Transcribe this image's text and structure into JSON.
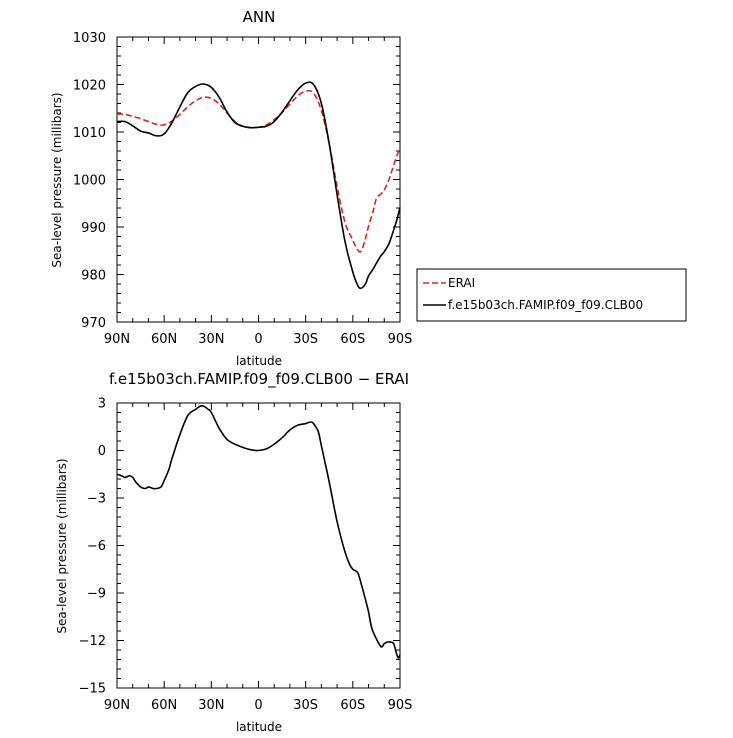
{
  "chart_data": [
    {
      "type": "line",
      "title": "ANN",
      "xlabel": "latitude",
      "ylabel": "Sea-level pressure (millibars)",
      "xlim": [
        90,
        -90
      ],
      "ylim": [
        970,
        1030
      ],
      "x_ticks": [
        {
          "value": 90,
          "label": "90N"
        },
        {
          "value": 60,
          "label": "60N"
        },
        {
          "value": 30,
          "label": "30N"
        },
        {
          "value": 0,
          "label": "0"
        },
        {
          "value": -30,
          "label": "30S"
        },
        {
          "value": -60,
          "label": "60S"
        },
        {
          "value": -90,
          "label": "90S"
        }
      ],
      "y_ticks": [
        {
          "value": 970,
          "label": "970"
        },
        {
          "value": 980,
          "label": "980"
        },
        {
          "value": 990,
          "label": "990"
        },
        {
          "value": 1000,
          "label": "1000"
        },
        {
          "value": 1010,
          "label": "1010"
        },
        {
          "value": 1020,
          "label": "1020"
        },
        {
          "value": 1030,
          "label": "1030"
        }
      ],
      "legend_position": "right",
      "series": [
        {
          "name": "ERAI",
          "color": "#e02020",
          "dash": "dashed",
          "x": [
            90,
            85,
            80,
            75,
            70,
            65,
            60,
            55,
            50,
            45,
            40,
            35,
            30,
            25,
            20,
            15,
            10,
            5,
            0,
            -5,
            -10,
            -15,
            -20,
            -25,
            -30,
            -35,
            -40,
            -45,
            -50,
            -55,
            -60,
            -62,
            -65,
            -68,
            -70,
            -73,
            -75,
            -78,
            -80,
            -83,
            -85,
            -88,
            -90
          ],
          "y": [
            1013.8,
            1013.7,
            1013.3,
            1012.8,
            1012.2,
            1011.6,
            1011.5,
            1012.3,
            1013.7,
            1015.3,
            1016.6,
            1017.3,
            1017.1,
            1015.9,
            1014.0,
            1012.2,
            1011.2,
            1010.9,
            1011.0,
            1011.5,
            1012.6,
            1014.1,
            1015.9,
            1017.6,
            1018.6,
            1018.2,
            1014.5,
            1007.5,
            998.5,
            991.0,
            987.2,
            985.8,
            984.8,
            987.5,
            990.2,
            993.4,
            996.0,
            997.0,
            997.8,
            1000.0,
            1002.0,
            1005.0,
            1006.5
          ]
        },
        {
          "name": "f.e15b03ch.FAMIP.f09_f09.CLB00",
          "color": "#000000",
          "dash": "solid",
          "x": [
            90,
            85,
            80,
            75,
            70,
            65,
            60,
            55,
            50,
            45,
            40,
            35,
            30,
            25,
            20,
            15,
            10,
            5,
            0,
            -5,
            -10,
            -15,
            -20,
            -25,
            -30,
            -35,
            -40,
            -45,
            -50,
            -55,
            -60,
            -63,
            -65,
            -68,
            -70,
            -73,
            -75,
            -78,
            -80,
            -83,
            -85,
            -88,
            -90
          ],
          "y": [
            1012.2,
            1012.2,
            1011.3,
            1010.2,
            1009.8,
            1009.2,
            1009.6,
            1012.0,
            1015.3,
            1018.3,
            1019.6,
            1020.1,
            1019.4,
            1017.3,
            1014.2,
            1012.0,
            1011.2,
            1010.9,
            1011.0,
            1011.2,
            1012.2,
            1014.2,
            1016.6,
            1018.9,
            1020.3,
            1020.0,
            1016.0,
            1007.5,
            996.8,
            987.0,
            980.5,
            977.8,
            977.1,
            978.0,
            979.7,
            981.2,
            982.4,
            984.0,
            984.8,
            986.5,
            988.4,
            991.5,
            994.1
          ]
        }
      ]
    },
    {
      "type": "line",
      "title": "f.e15b03ch.FAMIP.f09_f09.CLB00 − ERAI",
      "xlabel": "latitude",
      "ylabel": "Sea-level pressure (millibars)",
      "xlim": [
        90,
        -90
      ],
      "ylim": [
        -15,
        3
      ],
      "x_ticks": [
        {
          "value": 90,
          "label": "90N"
        },
        {
          "value": 60,
          "label": "60N"
        },
        {
          "value": 30,
          "label": "30N"
        },
        {
          "value": 0,
          "label": "0"
        },
        {
          "value": -30,
          "label": "30S"
        },
        {
          "value": -60,
          "label": "60S"
        },
        {
          "value": -90,
          "label": "90S"
        }
      ],
      "y_ticks": [
        {
          "value": 3,
          "label": "3"
        },
        {
          "value": 0,
          "label": "0"
        },
        {
          "value": -3,
          "label": "−3"
        },
        {
          "value": -6,
          "label": "−6"
        },
        {
          "value": -9,
          "label": "−9"
        },
        {
          "value": -12,
          "label": "−12"
        },
        {
          "value": -15,
          "label": "−15"
        }
      ],
      "series": [
        {
          "name": "",
          "color": "#000000",
          "dash": "solid",
          "x": [
            90,
            87,
            85,
            82,
            80,
            78,
            75,
            72,
            70,
            67,
            65,
            62,
            60,
            57,
            55,
            50,
            45,
            40,
            37,
            35,
            32,
            30,
            25,
            20,
            15,
            10,
            5,
            0,
            -5,
            -10,
            -15,
            -20,
            -25,
            -30,
            -33,
            -35,
            -38,
            -40,
            -45,
            -50,
            -55,
            -58,
            -60,
            -63,
            -65,
            -68,
            -70,
            -72,
            -75,
            -78,
            -80,
            -82,
            -84,
            -86,
            -88,
            -89,
            -90
          ],
          "y": [
            -1.5,
            -1.6,
            -1.7,
            -1.6,
            -1.7,
            -2.0,
            -2.3,
            -2.4,
            -2.3,
            -2.4,
            -2.4,
            -2.3,
            -1.9,
            -1.2,
            -0.5,
            1.0,
            2.2,
            2.6,
            2.8,
            2.8,
            2.6,
            2.4,
            1.4,
            0.7,
            0.4,
            0.2,
            0.05,
            0.0,
            0.1,
            0.4,
            0.8,
            1.3,
            1.6,
            1.7,
            1.8,
            1.7,
            1.2,
            0.3,
            -2.0,
            -4.5,
            -6.4,
            -7.2,
            -7.5,
            -7.7,
            -8.3,
            -9.4,
            -10.2,
            -11.2,
            -11.9,
            -12.4,
            -12.2,
            -12.1,
            -12.1,
            -12.2,
            -12.9,
            -13.1,
            -12.9
          ]
        }
      ]
    }
  ]
}
